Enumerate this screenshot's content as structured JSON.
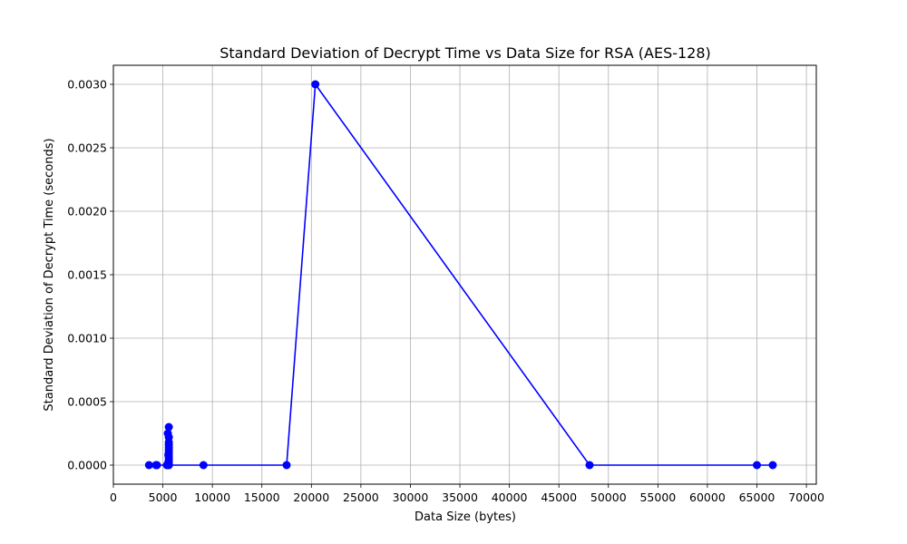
{
  "chart_data": {
    "type": "line",
    "title": "Standard Deviation of Decrypt Time vs Data Size for RSA (AES-128)",
    "xlabel": "Data Size (bytes)",
    "ylabel": "Standard Deviation of Decrypt Time (seconds)",
    "xlim": [
      0,
      71000
    ],
    "ylim": [
      -0.00015,
      0.00315
    ],
    "xticks": [
      0,
      5000,
      10000,
      15000,
      20000,
      25000,
      30000,
      35000,
      40000,
      45000,
      50000,
      55000,
      60000,
      65000,
      70000
    ],
    "xtick_labels": [
      "0",
      "5000",
      "10000",
      "15000",
      "20000",
      "25000",
      "30000",
      "35000",
      "40000",
      "45000",
      "50000",
      "55000",
      "60000",
      "65000",
      "70000"
    ],
    "yticks": [
      0.0,
      0.0005,
      0.001,
      0.0015,
      0.002,
      0.0025,
      0.003
    ],
    "ytick_labels": [
      "0.0000",
      "0.0005",
      "0.0010",
      "0.0015",
      "0.0020",
      "0.0025",
      "0.0030"
    ],
    "grid": true,
    "series": [
      {
        "color": "#0000ff",
        "marker": "circle",
        "x": [
          3600,
          4300,
          4400,
          5400,
          5500,
          5500,
          5550,
          5550,
          5550,
          5600,
          5600,
          5600,
          5600,
          5600,
          5600,
          5600,
          5600,
          5600,
          5600,
          5600,
          5600,
          5600,
          9100,
          17500,
          20400,
          48100,
          65000,
          66600
        ],
        "y": [
          0.0,
          0.0,
          0.0,
          0.0,
          0.0,
          0.00025,
          2e-05,
          8e-05,
          0.0,
          0.0003,
          0.00022,
          0.00014,
          0.0001,
          6e-05,
          0.00016,
          0.00012,
          4e-05,
          0.00018,
          8e-05,
          2e-05,
          0.0,
          0.0,
          0.0,
          0.0,
          0.003,
          0.0,
          0.0,
          0.0
        ]
      }
    ]
  }
}
